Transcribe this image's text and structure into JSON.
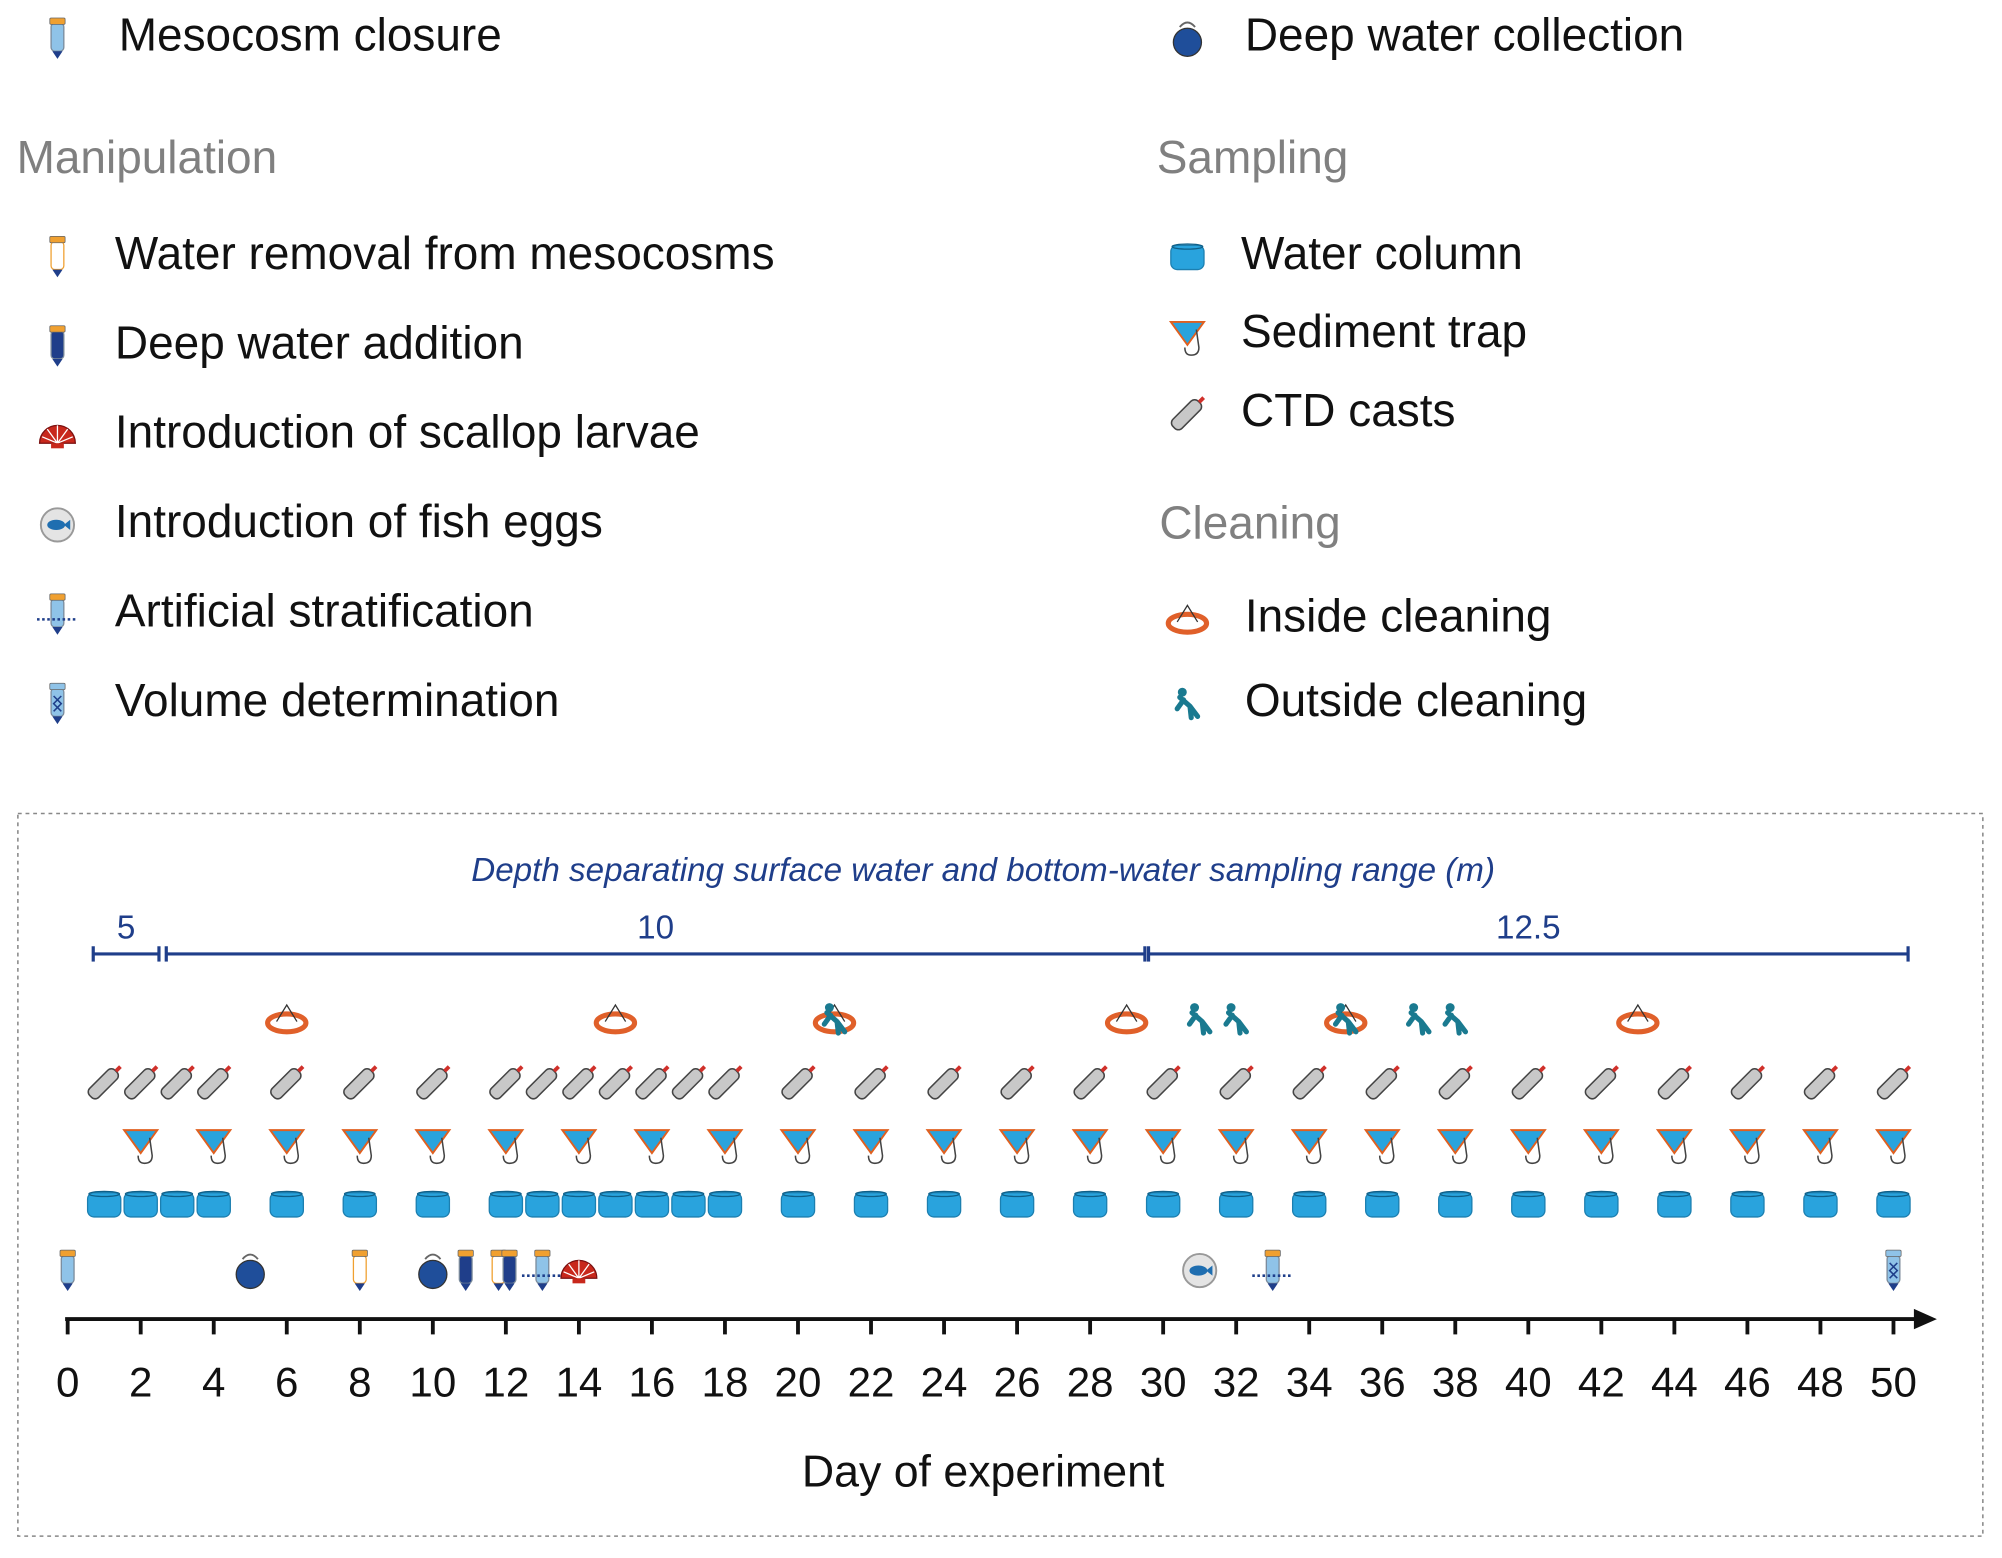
{
  "legend": {
    "top": [
      {
        "label": "Mesocosm closure",
        "days": [
          0
        ]
      },
      {
        "label": "Deep water collection",
        "days": [
          5,
          10
        ]
      }
    ],
    "groups": [
      {
        "title": "Manipulation",
        "items": [
          {
            "label": "Water removal from mesocosms",
            "days": [
              8,
              11.8
            ]
          },
          {
            "label": "Deep water addition",
            "days": [
              10.9,
              12.1
            ]
          },
          {
            "label": "Introduction of scallop larvae",
            "days": [
              14
            ]
          },
          {
            "label": "Introduction of fish eggs",
            "days": [
              31
            ]
          },
          {
            "label": "Artificial stratification",
            "days": [
              13,
              33
            ]
          },
          {
            "label": "Volume determination",
            "days": [
              50
            ]
          }
        ]
      },
      {
        "title": "Sampling",
        "items": [
          {
            "label": "Water column",
            "days": [
              1,
              2,
              3,
              4,
              6,
              8,
              10,
              12,
              13,
              14,
              15,
              16,
              17,
              18,
              20,
              22,
              24,
              26,
              28,
              30,
              32,
              34,
              36,
              38,
              40,
              42,
              44,
              46,
              48,
              50
            ]
          },
          {
            "label": "Sediment trap",
            "days": [
              2,
              4,
              6,
              8,
              10,
              12,
              14,
              16,
              18,
              20,
              22,
              24,
              26,
              28,
              30,
              32,
              34,
              36,
              38,
              40,
              42,
              44,
              46,
              48,
              50
            ]
          },
          {
            "label": "CTD casts",
            "days": [
              1,
              2,
              3,
              4,
              6,
              8,
              10,
              12,
              13,
              14,
              15,
              16,
              17,
              18,
              20,
              22,
              24,
              26,
              28,
              30,
              32,
              34,
              36,
              38,
              40,
              42,
              44,
              46,
              48,
              50
            ]
          }
        ]
      },
      {
        "title": "Cleaning",
        "items": [
          {
            "label": "Inside cleaning",
            "days": [
              6,
              15,
              21,
              29,
              35,
              43
            ]
          },
          {
            "label": "Outside cleaning",
            "days": [
              21,
              31,
              32,
              35,
              37,
              38
            ]
          }
        ]
      }
    ]
  },
  "timeline": {
    "depth_title": "Depth separating surface water and bottom-water sampling range (m)",
    "depth_segments": [
      {
        "label": "5",
        "start": 0.7,
        "end": 2.5
      },
      {
        "label": "10",
        "start": 2.7,
        "end": 29.5
      },
      {
        "label": "12.5",
        "start": 29.6,
        "end": 50.4
      }
    ],
    "xlim": [
      0,
      50
    ],
    "xticks": [
      0,
      2,
      4,
      6,
      8,
      10,
      12,
      14,
      16,
      18,
      20,
      22,
      24,
      26,
      28,
      30,
      32,
      34,
      36,
      38,
      40,
      42,
      44,
      46,
      48,
      50
    ],
    "xlabel": "Day of experiment"
  }
}
